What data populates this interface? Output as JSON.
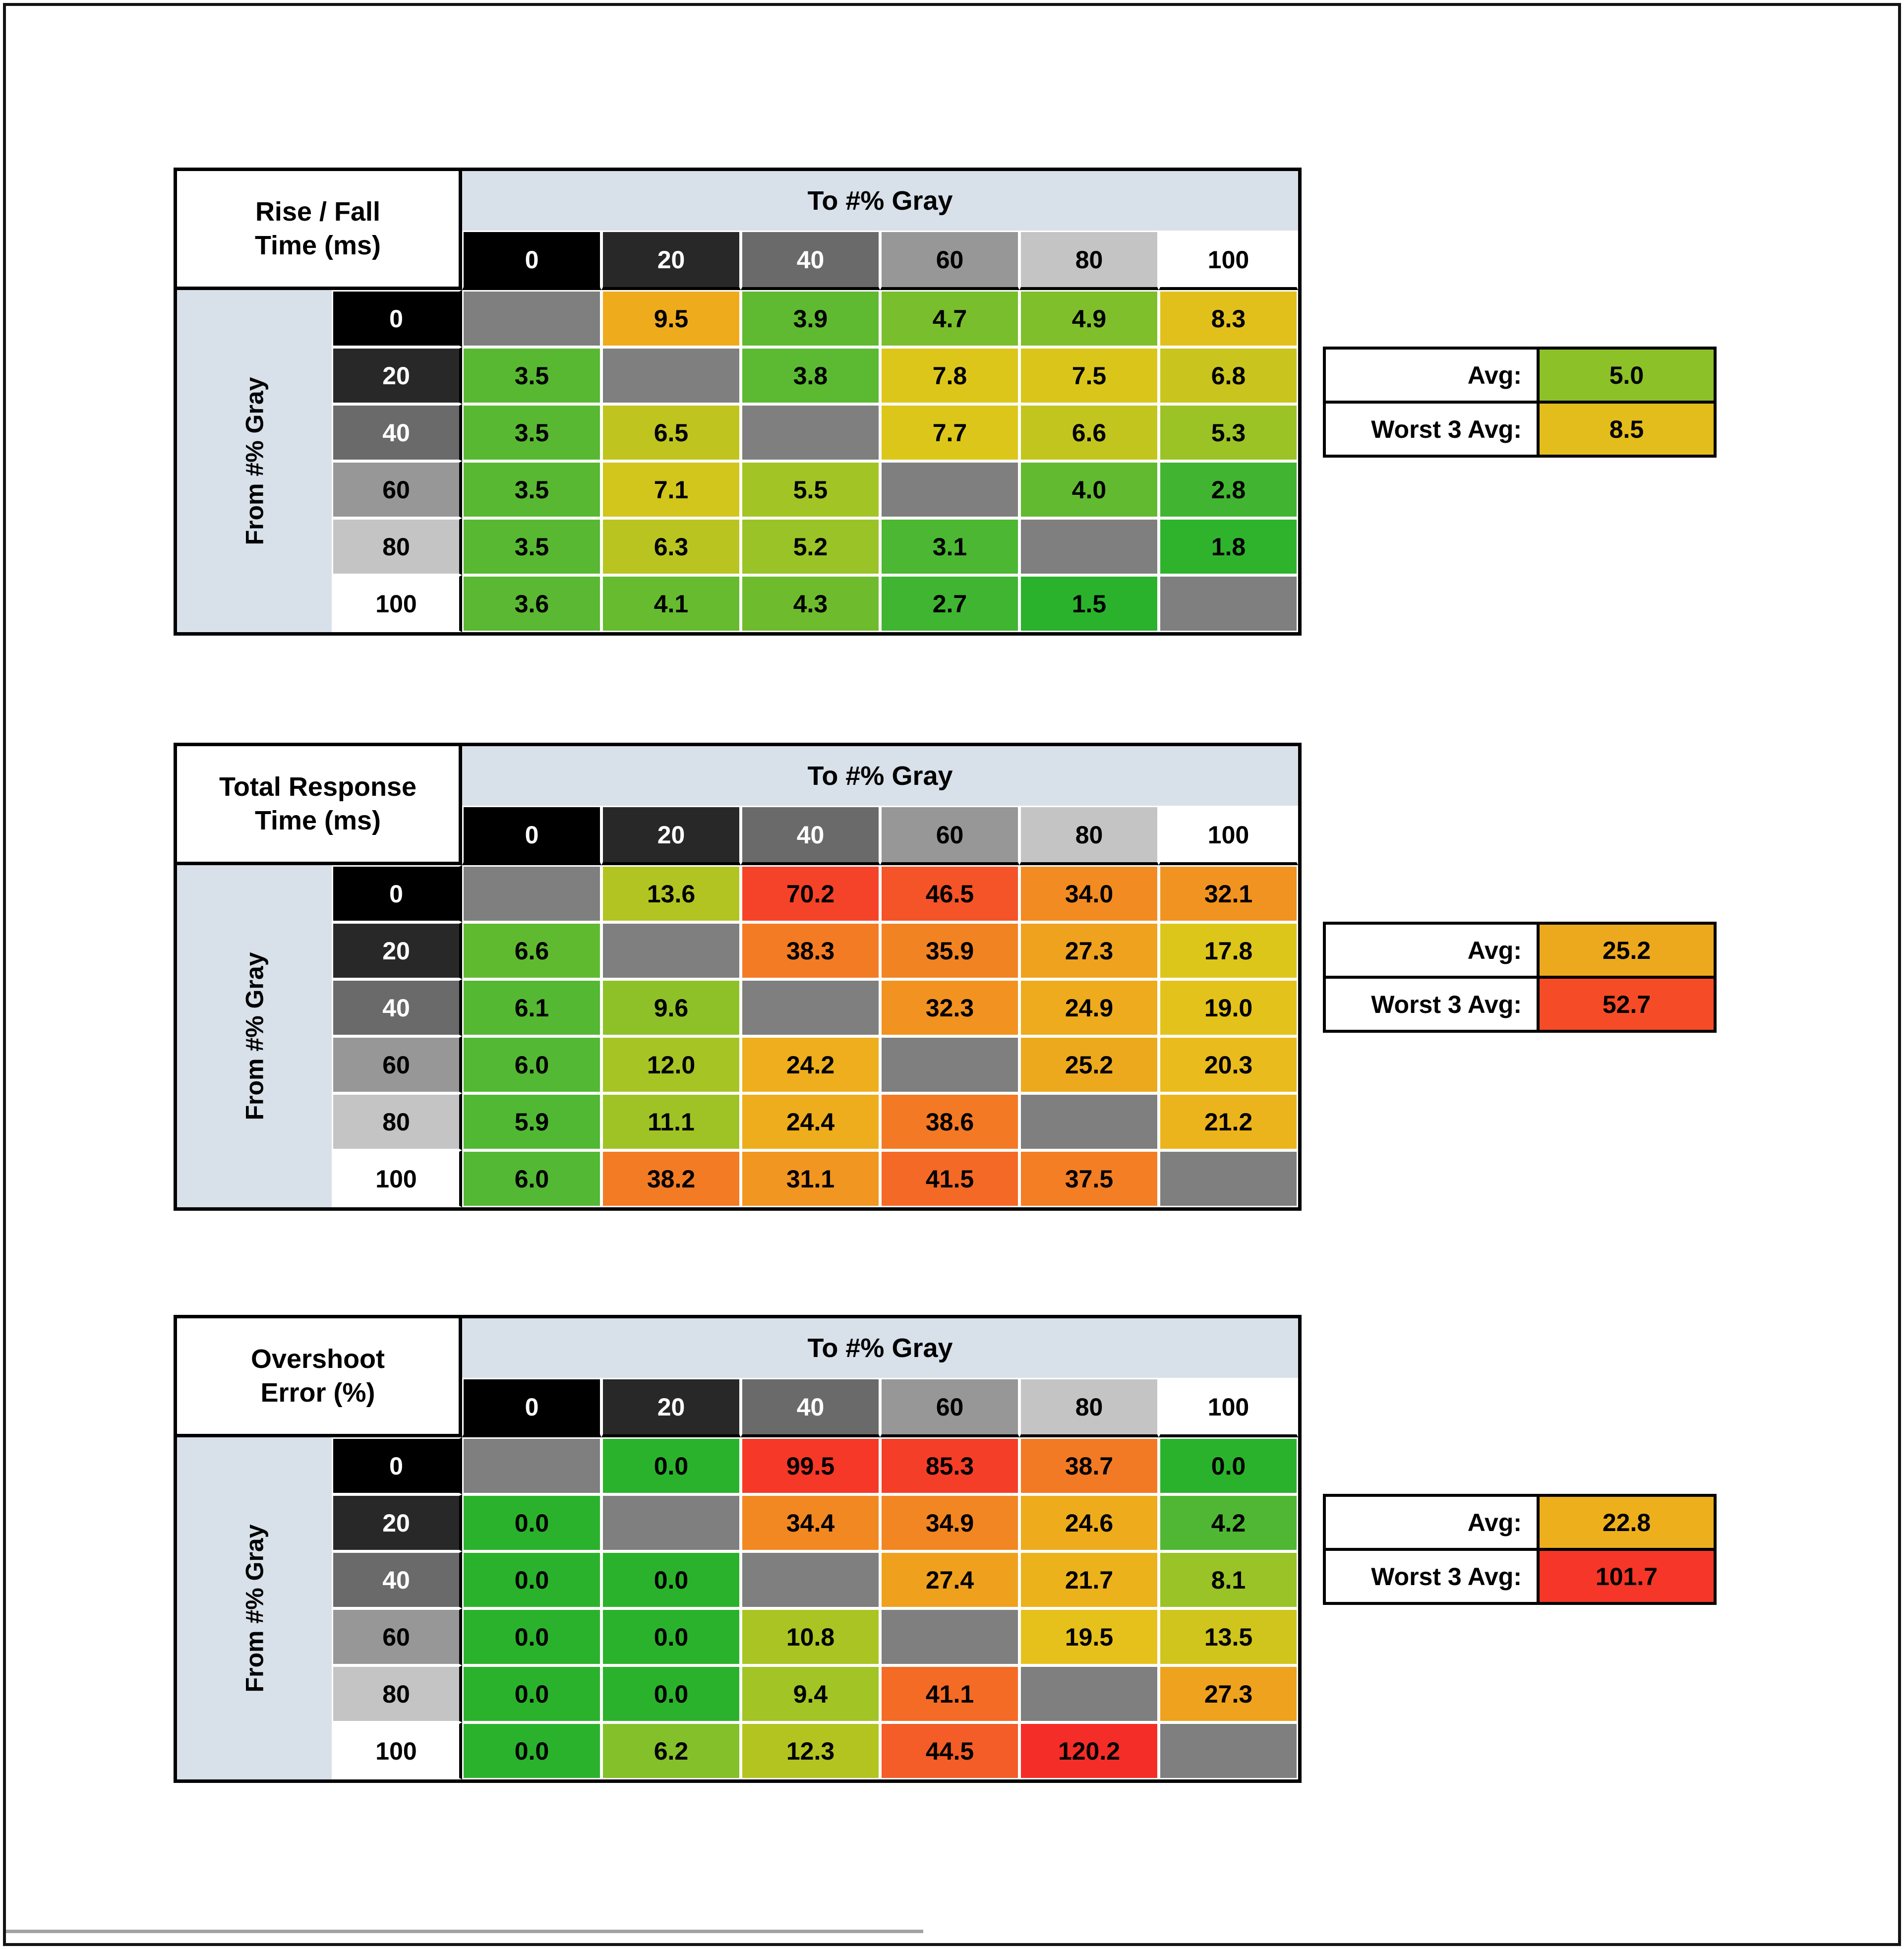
{
  "shared": {
    "to_label": "To #% Gray",
    "from_label": "From #% Gray",
    "gray_levels": [
      "0",
      "20",
      "40",
      "60",
      "80",
      "100"
    ],
    "gray_bg": [
      "#000000",
      "#282828",
      "#6a6a6a",
      "#979797",
      "#c4c4c4",
      "#ffffff"
    ],
    "gray_fg": [
      "#ffffff",
      "#ffffff",
      "#ffffff",
      "#000000",
      "#000000",
      "#000000"
    ],
    "diagonal_color": "#7f7f7f",
    "band_color": "#d8e0e9",
    "avg_label": "Avg:",
    "worst_label": "Worst 3 Avg:"
  },
  "chart_data": [
    {
      "type": "heatmap",
      "title": "Rise / Fall Time (ms)",
      "title_line1": "Rise / Fall",
      "title_line2": "Time (ms)",
      "x_axis_label": "To #% Gray",
      "y_axis_label": "From #% Gray",
      "categories": [
        "0",
        "20",
        "40",
        "60",
        "80",
        "100"
      ],
      "rows": [
        [
          null,
          [
            "9.5",
            "#eeab1c"
          ],
          [
            "3.9",
            "#5fb931"
          ],
          [
            "4.7",
            "#79be2c"
          ],
          [
            "4.9",
            "#7fbf2b"
          ],
          [
            "8.3",
            "#e2c01b"
          ]
        ],
        [
          [
            "3.5",
            "#58b832"
          ],
          null,
          [
            "3.8",
            "#5cb932"
          ],
          [
            "7.8",
            "#ddc61a"
          ],
          [
            "7.5",
            "#dac61a"
          ],
          [
            "6.8",
            "#c9c51e"
          ]
        ],
        [
          [
            "3.5",
            "#58b832"
          ],
          [
            "6.5",
            "#bfc41f"
          ],
          null,
          [
            "7.7",
            "#dcc61a"
          ],
          [
            "6.6",
            "#c3c51f"
          ],
          [
            "5.3",
            "#9cc326"
          ]
        ],
        [
          [
            "3.5",
            "#58b832"
          ],
          [
            "7.1",
            "#d2c51c"
          ],
          [
            "5.5",
            "#a3c425"
          ],
          null,
          [
            "4.0",
            "#62ba30"
          ],
          [
            "2.8",
            "#41b531"
          ]
        ],
        [
          [
            "3.5",
            "#58b832"
          ],
          [
            "6.3",
            "#b9c420"
          ],
          [
            "5.2",
            "#99c327"
          ],
          [
            "3.1",
            "#4bb733"
          ],
          null,
          [
            "1.8",
            "#2fb32d"
          ]
        ],
        [
          [
            "3.6",
            "#5ab832"
          ],
          [
            "4.1",
            "#66bb2f"
          ],
          [
            "4.3",
            "#6ebc2e"
          ],
          [
            "2.7",
            "#3fb531"
          ],
          [
            "1.5",
            "#2bb22c"
          ],
          null
        ]
      ],
      "avg": {
        "value": "5.0",
        "color": "#8cc128"
      },
      "worst": {
        "value": "8.5",
        "color": "#e3bd1b"
      }
    },
    {
      "type": "heatmap",
      "title": "Total Response Time (ms)",
      "title_line1": "Total Response",
      "title_line2": "Time (ms)",
      "x_axis_label": "To #% Gray",
      "y_axis_label": "From #% Gray",
      "categories": [
        "0",
        "20",
        "40",
        "60",
        "80",
        "100"
      ],
      "rows": [
        [
          null,
          [
            "13.6",
            "#b2c421"
          ],
          [
            "70.2",
            "#f54329"
          ],
          [
            "46.5",
            "#f45427"
          ],
          [
            "34.0",
            "#f28b22"
          ],
          [
            "32.1",
            "#f19321"
          ]
        ],
        [
          [
            "6.6",
            "#60ba30"
          ],
          null,
          [
            "38.3",
            "#f37b24"
          ],
          [
            "35.9",
            "#f28323"
          ],
          [
            "27.3",
            "#efa21e"
          ],
          [
            "17.8",
            "#ddc61a"
          ]
        ],
        [
          [
            "6.1",
            "#55b833"
          ],
          [
            "9.6",
            "#8ec128"
          ],
          null,
          [
            "32.3",
            "#f19221"
          ],
          [
            "24.9",
            "#eeab1d"
          ],
          [
            "19.0",
            "#e3c31b"
          ]
        ],
        [
          [
            "6.0",
            "#53b833"
          ],
          [
            "12.0",
            "#a6c424"
          ],
          [
            "24.2",
            "#eeae1d"
          ],
          null,
          [
            "25.2",
            "#eda91d"
          ],
          [
            "20.3",
            "#e9bb1c"
          ]
        ],
        [
          [
            "5.9",
            "#51b833"
          ],
          [
            "11.1",
            "#9fc325"
          ],
          [
            "24.4",
            "#eead1d"
          ],
          [
            "38.6",
            "#f37924"
          ],
          null,
          [
            "21.2",
            "#ecb41c"
          ]
        ],
        [
          [
            "6.0",
            "#53b833"
          ],
          [
            "38.2",
            "#f37b24"
          ],
          [
            "31.1",
            "#f19621"
          ],
          [
            "41.5",
            "#f46926"
          ],
          [
            "37.5",
            "#f37e24"
          ],
          null
        ]
      ],
      "avg": {
        "value": "25.2",
        "color": "#eda91d"
      },
      "worst": {
        "value": "52.7",
        "color": "#f54c27"
      }
    },
    {
      "type": "heatmap",
      "title": "Overshoot Error (%)",
      "title_line1": "Overshoot",
      "title_line2": "Error (%)",
      "x_axis_label": "To #% Gray",
      "y_axis_label": "From #% Gray",
      "categories": [
        "0",
        "20",
        "40",
        "60",
        "80",
        "100"
      ],
      "rows": [
        [
          null,
          [
            "0.0",
            "#2bb22c"
          ],
          [
            "99.5",
            "#f53828"
          ],
          [
            "85.3",
            "#f53e28"
          ],
          [
            "38.7",
            "#f37a24"
          ],
          [
            "0.0",
            "#2bb22c"
          ]
        ],
        [
          [
            "0.0",
            "#2bb22c"
          ],
          null,
          [
            "34.4",
            "#f28822"
          ],
          [
            "34.9",
            "#f28622"
          ],
          [
            "24.6",
            "#eeac1d"
          ],
          [
            "4.2",
            "#4fb733"
          ]
        ],
        [
          [
            "0.0",
            "#2bb22c"
          ],
          [
            "0.0",
            "#2bb22c"
          ],
          null,
          [
            "27.4",
            "#efa11e"
          ],
          [
            "21.7",
            "#ecb21c"
          ],
          [
            "8.1",
            "#99c326"
          ]
        ],
        [
          [
            "0.0",
            "#2bb22c"
          ],
          [
            "0.0",
            "#2bb22c"
          ],
          [
            "10.8",
            "#aac423"
          ],
          null,
          [
            "19.5",
            "#e6c11b"
          ],
          [
            "13.5",
            "#cfc51d"
          ]
        ],
        [
          [
            "0.0",
            "#2bb22c"
          ],
          [
            "0.0",
            "#2bb22c"
          ],
          [
            "9.4",
            "#a2c425"
          ],
          [
            "41.1",
            "#f46b26"
          ],
          null,
          [
            "27.3",
            "#efa21e"
          ]
        ],
        [
          [
            "0.0",
            "#2bb22c"
          ],
          [
            "6.2",
            "#84c02a"
          ],
          [
            "12.3",
            "#b3c421"
          ],
          [
            "44.5",
            "#f45d27"
          ],
          [
            "120.2",
            "#f52d28"
          ],
          null
        ]
      ],
      "avg": {
        "value": "22.8",
        "color": "#edb01c"
      },
      "worst": {
        "value": "101.7",
        "color": "#f53628"
      }
    }
  ]
}
